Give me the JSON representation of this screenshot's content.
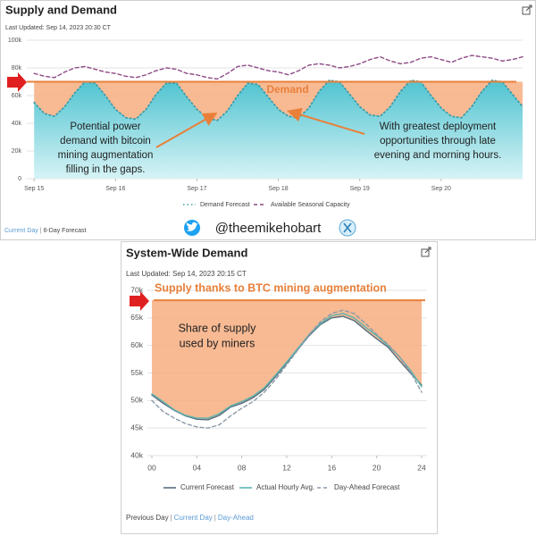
{
  "chart_data": [
    {
      "type": "line",
      "title": "Supply and Demand",
      "subtitle": "Last Updated: Sep 14, 2023 20:30 CT",
      "x": [
        0,
        0.125,
        0.25,
        0.375,
        0.5,
        0.625,
        0.75,
        0.875,
        1,
        1.125,
        1.25,
        1.375,
        1.5,
        1.625,
        1.75,
        1.875,
        2,
        2.125,
        2.25,
        2.375,
        2.5,
        2.625,
        2.75,
        2.875,
        3,
        3.125,
        3.25,
        3.375,
        3.5,
        3.625,
        3.75,
        3.875,
        4,
        4.125,
        4.25,
        4.375,
        4.5,
        4.625,
        4.75,
        4.875,
        5,
        5.125,
        5.25,
        5.375,
        5.5,
        5.625,
        5.75,
        5.875,
        6
      ],
      "xlim": [
        -0.09,
        6.0
      ],
      "xticks": [
        {
          "value": 0,
          "label": "Sep 15"
        },
        {
          "value": 1,
          "label": "Sep 16"
        },
        {
          "value": 2,
          "label": "Sep 17"
        },
        {
          "value": 3,
          "label": "Sep 18"
        },
        {
          "value": 4,
          "label": "Sep 19"
        },
        {
          "value": 5,
          "label": "Sep 20"
        }
      ],
      "ylim": [
        0,
        100000
      ],
      "yticks": [
        0,
        {
          "value": 20000,
          "label": "20k"
        },
        {
          "value": 40000,
          "label": "40k"
        },
        {
          "value": 60000,
          "label": "60k"
        },
        {
          "value": 80000,
          "label": "80k"
        },
        {
          "value": 100000,
          "label": "100k"
        }
      ],
      "grid": true,
      "series": [
        {
          "name": "Demand Forecast",
          "color": "#3a9fad",
          "dash": "dotted",
          "fill": true,
          "values": [
            55000,
            47000,
            45000,
            52000,
            62000,
            70000,
            69000,
            60000,
            50000,
            44000,
            43000,
            50000,
            61000,
            69000,
            69000,
            59000,
            50000,
            44000,
            42000,
            49000,
            60000,
            69000,
            68000,
            59000,
            50000,
            45000,
            44000,
            51000,
            63000,
            71000,
            70000,
            61000,
            52000,
            46000,
            45000,
            52000,
            63000,
            71000,
            70000,
            60000,
            51000,
            45000,
            44000,
            52000,
            63000,
            71000,
            70000,
            61000,
            52000
          ]
        },
        {
          "name": "Available Seasonal Capacity",
          "color": "#8e4a86",
          "dash": "dashed",
          "fill": false,
          "values": [
            76000,
            74000,
            73000,
            77000,
            80000,
            81000,
            79000,
            77000,
            76000,
            74000,
            73000,
            75000,
            78000,
            80000,
            79000,
            76000,
            75000,
            73000,
            72000,
            76000,
            81000,
            82000,
            80000,
            78000,
            77000,
            75000,
            78000,
            82000,
            83000,
            82000,
            80000,
            81000,
            83000,
            86000,
            88000,
            85000,
            83000,
            84000,
            87000,
            88000,
            86000,
            84000,
            87000,
            89000,
            88000,
            87000,
            85000,
            86000,
            88000
          ]
        }
      ],
      "level": {
        "label": "Demand",
        "value": 70000,
        "color": "#e8803a"
      },
      "annotations": [
        {
          "lines": [
            "Potential power",
            "demand with bitcoin",
            "mining augmentation",
            "filling in the gaps."
          ]
        },
        {
          "lines": [
            "With greatest deployment",
            "opportunities through late",
            "evening and morning hours."
          ]
        }
      ],
      "footer_links": [
        "Current Day",
        "6-Day Forecast"
      ]
    },
    {
      "type": "line",
      "title": "System-Wide Demand",
      "subtitle": "Last Updated: Sep 14, 2023 20:15 CT",
      "x": [
        0,
        1,
        2,
        3,
        4,
        5,
        6,
        7,
        8,
        9,
        10,
        11,
        12,
        13,
        14,
        15,
        16,
        17,
        18,
        19,
        20,
        21,
        22,
        23,
        24
      ],
      "xlim": [
        0,
        24
      ],
      "xticks": [
        {
          "value": 0,
          "label": "00"
        },
        {
          "value": 4,
          "label": "04"
        },
        {
          "value": 8,
          "label": "08"
        },
        12,
        16,
        20,
        24
      ],
      "ylim": [
        40000,
        70000
      ],
      "yticks": [
        {
          "value": 40000,
          "label": "40k"
        },
        {
          "value": 45000,
          "label": "45k"
        },
        {
          "value": 50000,
          "label": "50k"
        },
        {
          "value": 55000,
          "label": "55k"
        },
        {
          "value": 60000,
          "label": "60k"
        },
        {
          "value": 65000,
          "label": "65k"
        },
        {
          "value": 70000,
          "label": "70k"
        }
      ],
      "grid": true,
      "series": [
        {
          "name": "Current Forecast",
          "color": "#5a6e7f",
          "dash": "solid",
          "fill": false,
          "values": [
            51000,
            49500,
            48200,
            47200,
            46600,
            46500,
            47300,
            48800,
            49500,
            50500,
            52000,
            54300,
            56800,
            59300,
            61800,
            63800,
            65000,
            65300,
            64500,
            62800,
            61200,
            59700,
            57300,
            55000,
            52800
          ]
        },
        {
          "name": "Actual Hourly Avg.",
          "color": "#5ab5b0",
          "dash": "solid",
          "fill": false,
          "values": [
            51200,
            49800,
            48300,
            47300,
            46800,
            46800,
            47600,
            49000,
            49800,
            50800,
            52300,
            54600,
            57000,
            59500,
            62000,
            64000,
            65400,
            65800,
            65000,
            63300,
            61800,
            60000,
            58000,
            55500,
            52500
          ]
        },
        {
          "name": "Day-Ahead Forecast",
          "color": "#8a9aa8",
          "dash": "dashed",
          "fill": false,
          "values": [
            50000,
            48000,
            46800,
            45800,
            45200,
            45000,
            45600,
            47200,
            48600,
            49800,
            51500,
            53800,
            56500,
            59200,
            62000,
            64300,
            65800,
            66400,
            65800,
            64000,
            62000,
            60200,
            58000,
            55200,
            51500
          ]
        }
      ],
      "level": {
        "label": "Supply thanks to BTC mining augmentation",
        "value": 68200,
        "color": "#e8803a"
      },
      "annotations": [
        {
          "lines": [
            "Share of supply",
            "used by miners"
          ]
        }
      ],
      "footer_links": [
        "Previous Day",
        "Current Day",
        "Day-Ahead"
      ]
    }
  ],
  "social_handle": "@theemikehobart"
}
